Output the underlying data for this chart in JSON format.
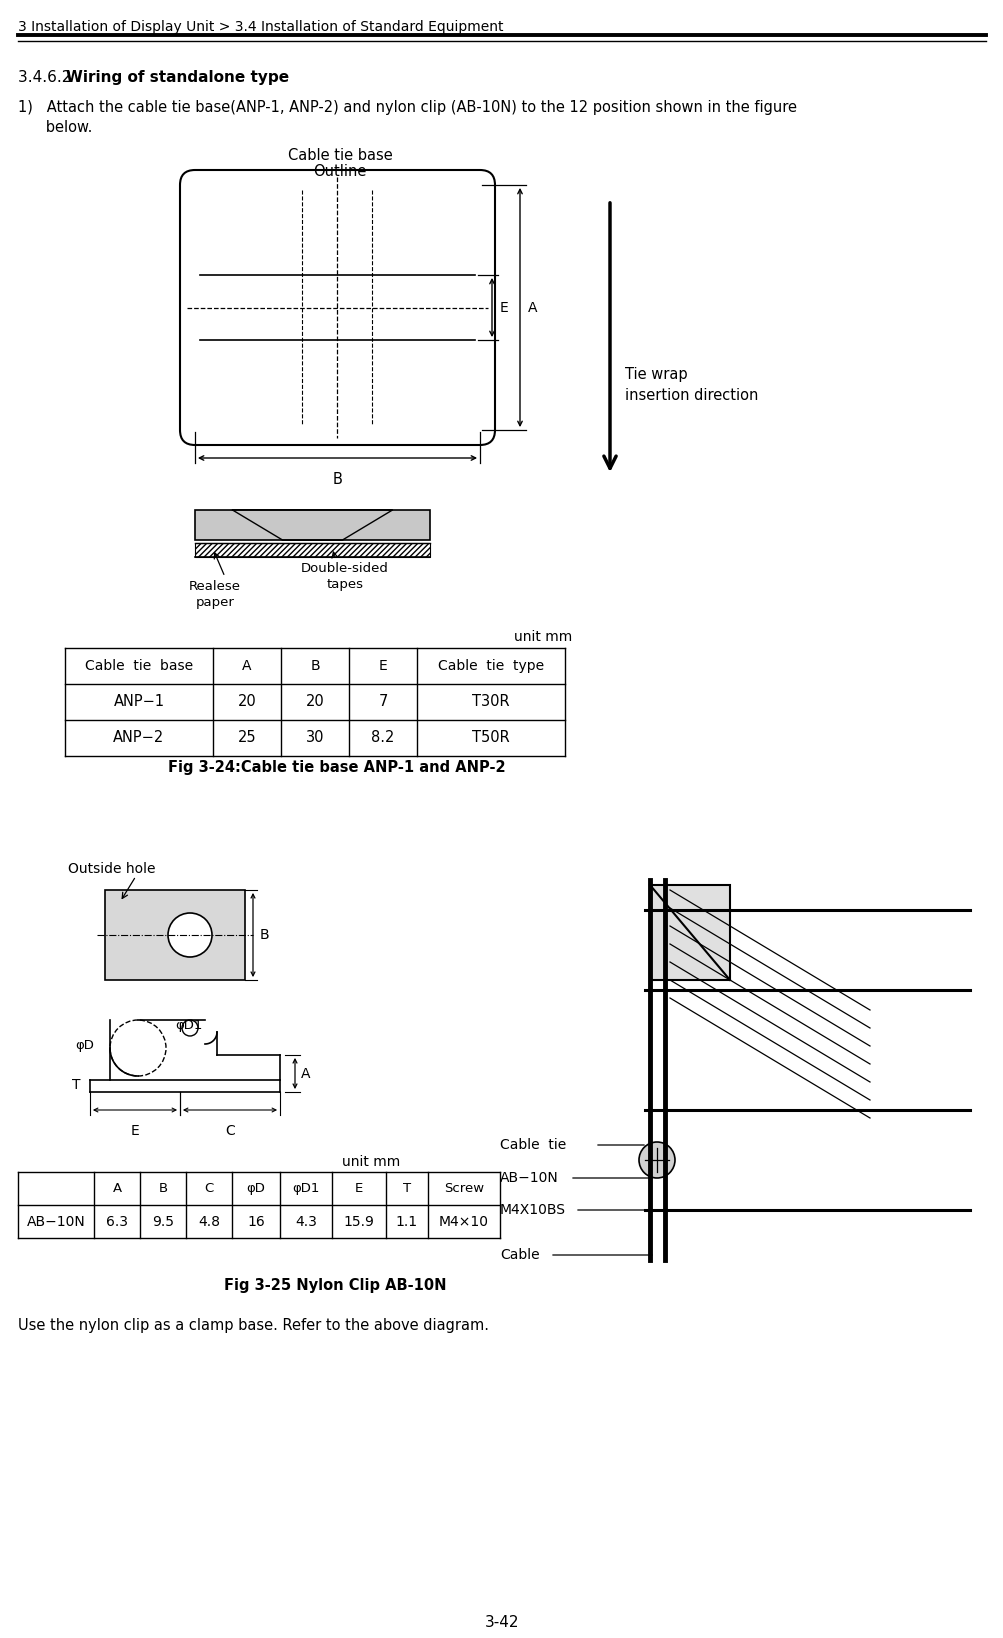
{
  "page_header": "3 Installation of Display Unit > 3.4 Installation of Standard Equipment",
  "page_number": "3-42",
  "section_label": "3.4.6.2 ",
  "section_title": "Wiring of standalone type",
  "step1_line1": "1)   Attach the cable tie base(ANP-1, ANP-2) and nylon clip (AB-10N) to the 12 position shown in the figure",
  "step1_line2": "      below.",
  "fig1_title1": "Cable tie base",
  "fig1_title2": "Outline",
  "tie_wrap1": "Tie wrap",
  "tie_wrap2": "insertion direction",
  "realese1": "Realese",
  "realese2": "paper",
  "double1": "Double-sided",
  "double2": "tapes",
  "unit_mm": "unit mm",
  "t1_col0": "Cable  tie  base",
  "t1_col1": "A",
  "t1_col2": "B",
  "t1_col3": "E",
  "t1_col4": "Cable  tie  type",
  "t1_r1": [
    "ANP−1",
    "20",
    "20",
    "7",
    "T30R"
  ],
  "t1_r2": [
    "ANP−2",
    "25",
    "30",
    "8.2",
    "T50R"
  ],
  "fig1_caption": "Fig 3-24:Cable tie base ANP-1 and ANP-2",
  "outside_hole": "Outside hole",
  "phi_d": "φD",
  "phi_d1": "φD1",
  "label_b": "B",
  "label_a": "A",
  "label_t": "T",
  "label_e": "E",
  "label_c": "C",
  "t2_h": [
    "",
    "A",
    "B",
    "C",
    "φD",
    "φD1",
    "E",
    "T",
    "Screw"
  ],
  "t2_r1": [
    "AB−10N",
    "6.3",
    "9.5",
    "4.8",
    "16",
    "4.3",
    "15.9",
    "1.1",
    "M4×10"
  ],
  "cable_tie": "Cable  tie",
  "ab10n": "AB−10N",
  "m4x10bs": "M4X10BS",
  "cable": "Cable",
  "fig2_caption": "Fig 3-25 Nylon Clip AB-10N",
  "conclusion": "Use the nylon clip as a clamp base. Refer to the above diagram.",
  "bg": "#ffffff",
  "black": "#000000",
  "gray": "#aaaaaa"
}
